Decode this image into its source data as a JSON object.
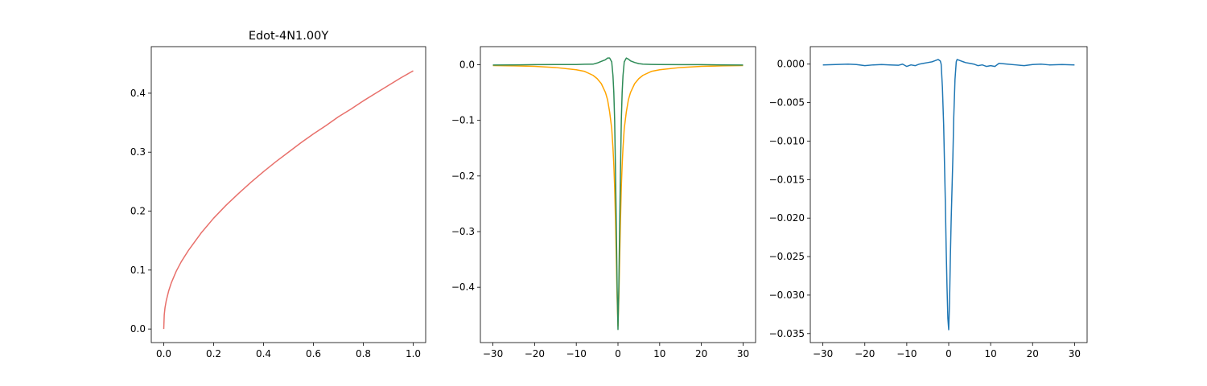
{
  "chart_data": [
    {
      "type": "line",
      "title": "Edot-4N1.00Y",
      "xlabel": "",
      "ylabel": "",
      "xlim": [
        -0.05,
        1.05
      ],
      "ylim": [
        -0.023,
        0.479
      ],
      "xticks": [
        0.0,
        0.2,
        0.4,
        0.6,
        0.8,
        1.0
      ],
      "xtick_labels": [
        "0.0",
        "0.2",
        "0.4",
        "0.6",
        "0.8",
        "1.0"
      ],
      "yticks": [
        0.0,
        0.1,
        0.2,
        0.3,
        0.4
      ],
      "ytick_labels": [
        "0.0",
        "0.1",
        "0.2",
        "0.3",
        "0.4"
      ],
      "grid": false,
      "series": [
        {
          "color": "#e8706b",
          "x": [
            0.0,
            0.002,
            0.005,
            0.01,
            0.02,
            0.03,
            0.05,
            0.07,
            0.1,
            0.15,
            0.2,
            0.25,
            0.3,
            0.35,
            0.4,
            0.45,
            0.5,
            0.55,
            0.6,
            0.65,
            0.7,
            0.75,
            0.8,
            0.85,
            0.9,
            0.95,
            1.0
          ],
          "y": [
            0.0,
            0.024,
            0.036,
            0.048,
            0.065,
            0.078,
            0.098,
            0.114,
            0.134,
            0.163,
            0.188,
            0.21,
            0.23,
            0.249,
            0.267,
            0.284,
            0.3,
            0.316,
            0.331,
            0.345,
            0.36,
            0.373,
            0.387,
            0.4,
            0.413,
            0.426,
            0.438
          ]
        }
      ]
    },
    {
      "type": "line",
      "xlabel": "",
      "ylabel": "",
      "xlim": [
        -33.0,
        33.0
      ],
      "ylim": [
        -0.4995,
        0.0325
      ],
      "xticks": [
        -30,
        -20,
        -10,
        0,
        10,
        20,
        30
      ],
      "xtick_labels": [
        "−30",
        "−20",
        "−10",
        "0",
        "10",
        "20",
        "30"
      ],
      "yticks": [
        0.0,
        -0.1,
        -0.2,
        -0.3,
        -0.4
      ],
      "ytick_labels": [
        "0.0",
        "−0.1",
        "−0.2",
        "−0.3",
        "−0.4"
      ],
      "grid": false,
      "series": [
        {
          "color": "#ffa500",
          "x": [
            -30,
            -25,
            -20,
            -15,
            -10,
            -8,
            -6,
            -5,
            -4,
            -3,
            -2.5,
            -2,
            -1.5,
            -1.2,
            -1,
            -0.8,
            -0.6,
            -0.4,
            -0.2,
            0,
            0.2,
            0.4,
            0.6,
            0.8,
            1,
            1.2,
            1.5,
            2,
            2.5,
            3,
            4,
            5,
            6,
            8,
            10,
            15,
            20,
            25,
            30
          ],
          "y": [
            -0.0015,
            -0.002,
            -0.003,
            -0.005,
            -0.009,
            -0.012,
            -0.019,
            -0.025,
            -0.034,
            -0.05,
            -0.063,
            -0.085,
            -0.115,
            -0.15,
            -0.18,
            -0.22,
            -0.28,
            -0.35,
            -0.42,
            -0.47,
            -0.42,
            -0.35,
            -0.28,
            -0.22,
            -0.18,
            -0.15,
            -0.115,
            -0.085,
            -0.063,
            -0.05,
            -0.034,
            -0.025,
            -0.019,
            -0.012,
            -0.009,
            -0.005,
            -0.003,
            -0.002,
            -0.0015
          ]
        },
        {
          "color": "#2e8b57",
          "x": [
            -30,
            -25,
            -20,
            -15,
            -10,
            -8,
            -6,
            -5,
            -4,
            -3,
            -2.5,
            -2,
            -1.5,
            -1.2,
            -1,
            -0.8,
            -0.6,
            -0.4,
            -0.2,
            0,
            0.2,
            0.4,
            0.6,
            0.8,
            1,
            1.2,
            1.5,
            2,
            2.5,
            3,
            4,
            5,
            6,
            8,
            10,
            15,
            20,
            25,
            30
          ],
          "y": [
            -0.0005,
            -0.0003,
            0.0002,
            0.0003,
            0.0004,
            0.0008,
            0.001,
            0.003,
            0.006,
            0.009,
            0.012,
            0.012,
            0.005,
            -0.02,
            -0.05,
            -0.1,
            -0.19,
            -0.29,
            -0.4,
            -0.476,
            -0.4,
            -0.29,
            -0.19,
            -0.1,
            -0.05,
            -0.02,
            0.005,
            0.012,
            0.01,
            0.007,
            0.004,
            0.002,
            0.001,
            0.0006,
            0.0004,
            0.0002,
            0.0001,
            -0.0003,
            -0.0005
          ]
        }
      ]
    },
    {
      "type": "line",
      "xlabel": "",
      "ylabel": "",
      "xlim": [
        -33.0,
        33.0
      ],
      "ylim": [
        -0.03617,
        0.00227
      ],
      "xticks": [
        -30,
        -20,
        -10,
        0,
        10,
        20,
        30
      ],
      "xtick_labels": [
        "−30",
        "−20",
        "−10",
        "0",
        "10",
        "20",
        "30"
      ],
      "yticks": [
        0.0,
        -0.005,
        -0.01,
        -0.015,
        -0.02,
        -0.025,
        -0.03,
        -0.035
      ],
      "ytick_labels": [
        "0.000",
        "−0.005",
        "−0.010",
        "−0.015",
        "−0.020",
        "−0.025",
        "−0.030",
        "−0.035"
      ],
      "grid": false,
      "series": [
        {
          "color": "#1f77b4",
          "x": [
            -30,
            -27,
            -24,
            -22,
            -20,
            -18,
            -16,
            -14,
            -12,
            -11,
            -10,
            -9,
            -8,
            -7,
            -6,
            -5,
            -4,
            -3.5,
            -3,
            -2.5,
            -2,
            -1.8,
            -1.5,
            -1.2,
            -1,
            -0.8,
            -0.6,
            -0.4,
            -0.2,
            0,
            0.2,
            0.4,
            0.6,
            0.8,
            1,
            1.2,
            1.5,
            1.8,
            2,
            2.5,
            3,
            3.5,
            4,
            5,
            6,
            7,
            8,
            9,
            10,
            11,
            12,
            14,
            16,
            18,
            20,
            22,
            24,
            27,
            30
          ],
          "y": [
            -0.0001,
            -5e-05,
            0.0,
            -5e-05,
            -0.0002,
            -0.0001,
            -5e-05,
            -0.0001,
            -0.00015,
            0.0,
            -0.0003,
            -0.0001,
            -0.0002,
            0.0,
            0.0001,
            0.0002,
            0.0003,
            0.0004,
            0.0005,
            0.0006,
            0.0004,
            0.0,
            -0.003,
            -0.008,
            -0.013,
            -0.018,
            -0.024,
            -0.029,
            -0.033,
            -0.0345,
            -0.031,
            -0.025,
            -0.02,
            -0.016,
            -0.012,
            -0.007,
            -0.002,
            0.0003,
            0.0006,
            0.0005,
            0.0004,
            0.0003,
            0.0002,
            0.0001,
            0.0,
            -0.0002,
            -0.0001,
            -0.0003,
            -0.0002,
            -0.0003,
            0.0001,
            0.0,
            -0.0001,
            -0.0002,
            -5e-05,
            0.0,
            -0.0001,
            -5e-05,
            -0.0001
          ]
        }
      ]
    }
  ]
}
